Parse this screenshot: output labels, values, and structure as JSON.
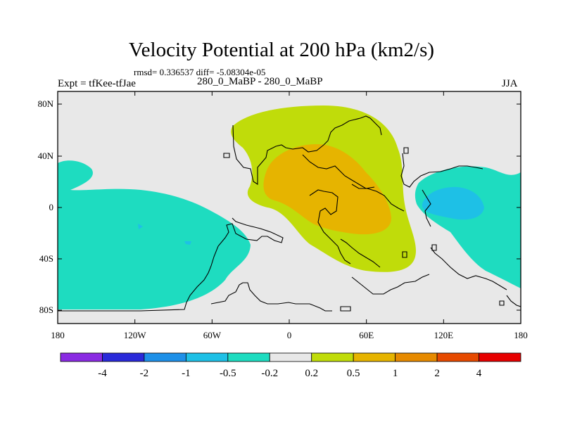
{
  "title": "Velocity Potential at 200 hPa (km2/s)",
  "stats": "rmsd= 0.336537 diff= -5.08304e-05",
  "left_label": "Expt = tfKee-tfJae",
  "center_label": "280_0_MaBP - 280_0_MaBP",
  "right_label": "JJA",
  "axes": {
    "y_ticks": [
      "80N",
      "40N",
      "0",
      "40S",
      "80S"
    ],
    "x_ticks": [
      "180",
      "120W",
      "60W",
      "0",
      "60E",
      "120E",
      "180"
    ]
  },
  "colorbar": {
    "colors": [
      "#8a2be2",
      "#2a2ad9",
      "#1e90e8",
      "#1ec0e6",
      "#1edcc0",
      "#e8e8e8",
      "#c0dc0a",
      "#e6b400",
      "#e68a00",
      "#e64a00",
      "#e60000"
    ],
    "labels": [
      "-4",
      "-2",
      "-1",
      "-0.5",
      "-0.2",
      "0.2",
      "0.5",
      "1",
      "2",
      "4"
    ]
  },
  "map_colors": {
    "neutral": "#e8e8e8",
    "neg_weak": "#1edcc0",
    "neg_mid": "#1ec0e6",
    "pos_weak": "#c0dc0a",
    "pos_mid": "#e6b400"
  }
}
